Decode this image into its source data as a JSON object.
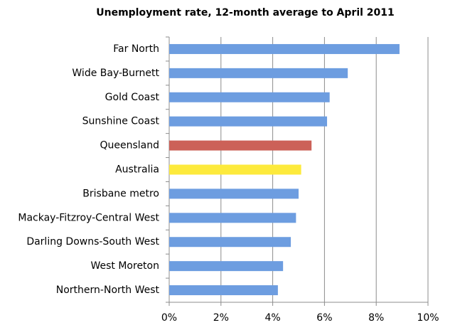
{
  "chart_data": {
    "type": "hbar",
    "title": "Unemployment rate, 12-month average to April 2011",
    "categories": [
      "Far North",
      "Wide Bay-Burnett",
      "Gold Coast",
      "Sunshine Coast",
      "Queensland",
      "Australia",
      "Brisbane metro",
      "Mackay-Fitzroy-Central West",
      "Darling Downs-South West",
      "West Moreton",
      "Northern-North West"
    ],
    "values": [
      8.9,
      6.9,
      6.2,
      6.1,
      5.5,
      5.1,
      5.0,
      4.9,
      4.7,
      4.4,
      4.2
    ],
    "colors": [
      "#6d9de0",
      "#6d9de0",
      "#6d9de0",
      "#6d9de0",
      "#cc6158",
      "#fdea3c",
      "#6d9de0",
      "#6d9de0",
      "#6d9de0",
      "#6d9de0",
      "#6d9de0"
    ],
    "xlim": [
      0,
      10
    ],
    "xticks": [
      {
        "value": 0,
        "label": "0%"
      },
      {
        "value": 2,
        "label": "2%"
      },
      {
        "value": 4,
        "label": "4%"
      },
      {
        "value": 6,
        "label": "6%"
      },
      {
        "value": 8,
        "label": "8%"
      },
      {
        "value": 10,
        "label": "10%"
      }
    ],
    "grid": true
  }
}
